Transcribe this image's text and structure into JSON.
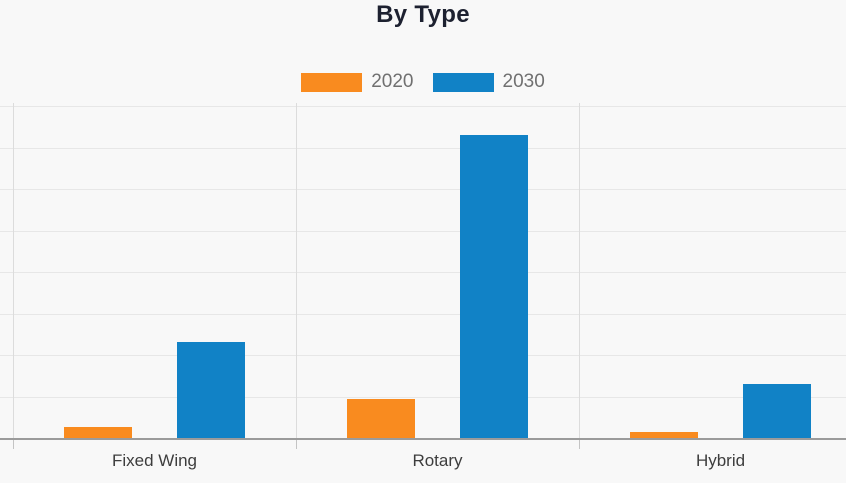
{
  "chart_data": {
    "type": "bar",
    "title": "By Type",
    "categories": [
      "Fixed Wing",
      "Rotary",
      "Hybrid"
    ],
    "series": [
      {
        "name": "2020",
        "color": "#F98B1F",
        "values": [
          0.27,
          0.94,
          0.15
        ]
      },
      {
        "name": "2030",
        "color": "#1182C6",
        "values": [
          2.31,
          7.3,
          1.3
        ]
      }
    ],
    "xlabel": "",
    "ylabel": "",
    "ylim": [
      0,
      8
    ],
    "grid": true,
    "gridline_count": 9,
    "y_tick_labels": "none",
    "legend_position": "top"
  },
  "theme": {
    "background": "#F8F8F8",
    "title_color": "#1D2130",
    "legend_text_color": "#707070",
    "axis_label_color": "#3D3D3D",
    "gridline_color": "#E7E7E7",
    "separator_color": "#DCDCDC",
    "axis_line_color": "#9B9B9B",
    "tick_color": "#C4C4C4"
  }
}
